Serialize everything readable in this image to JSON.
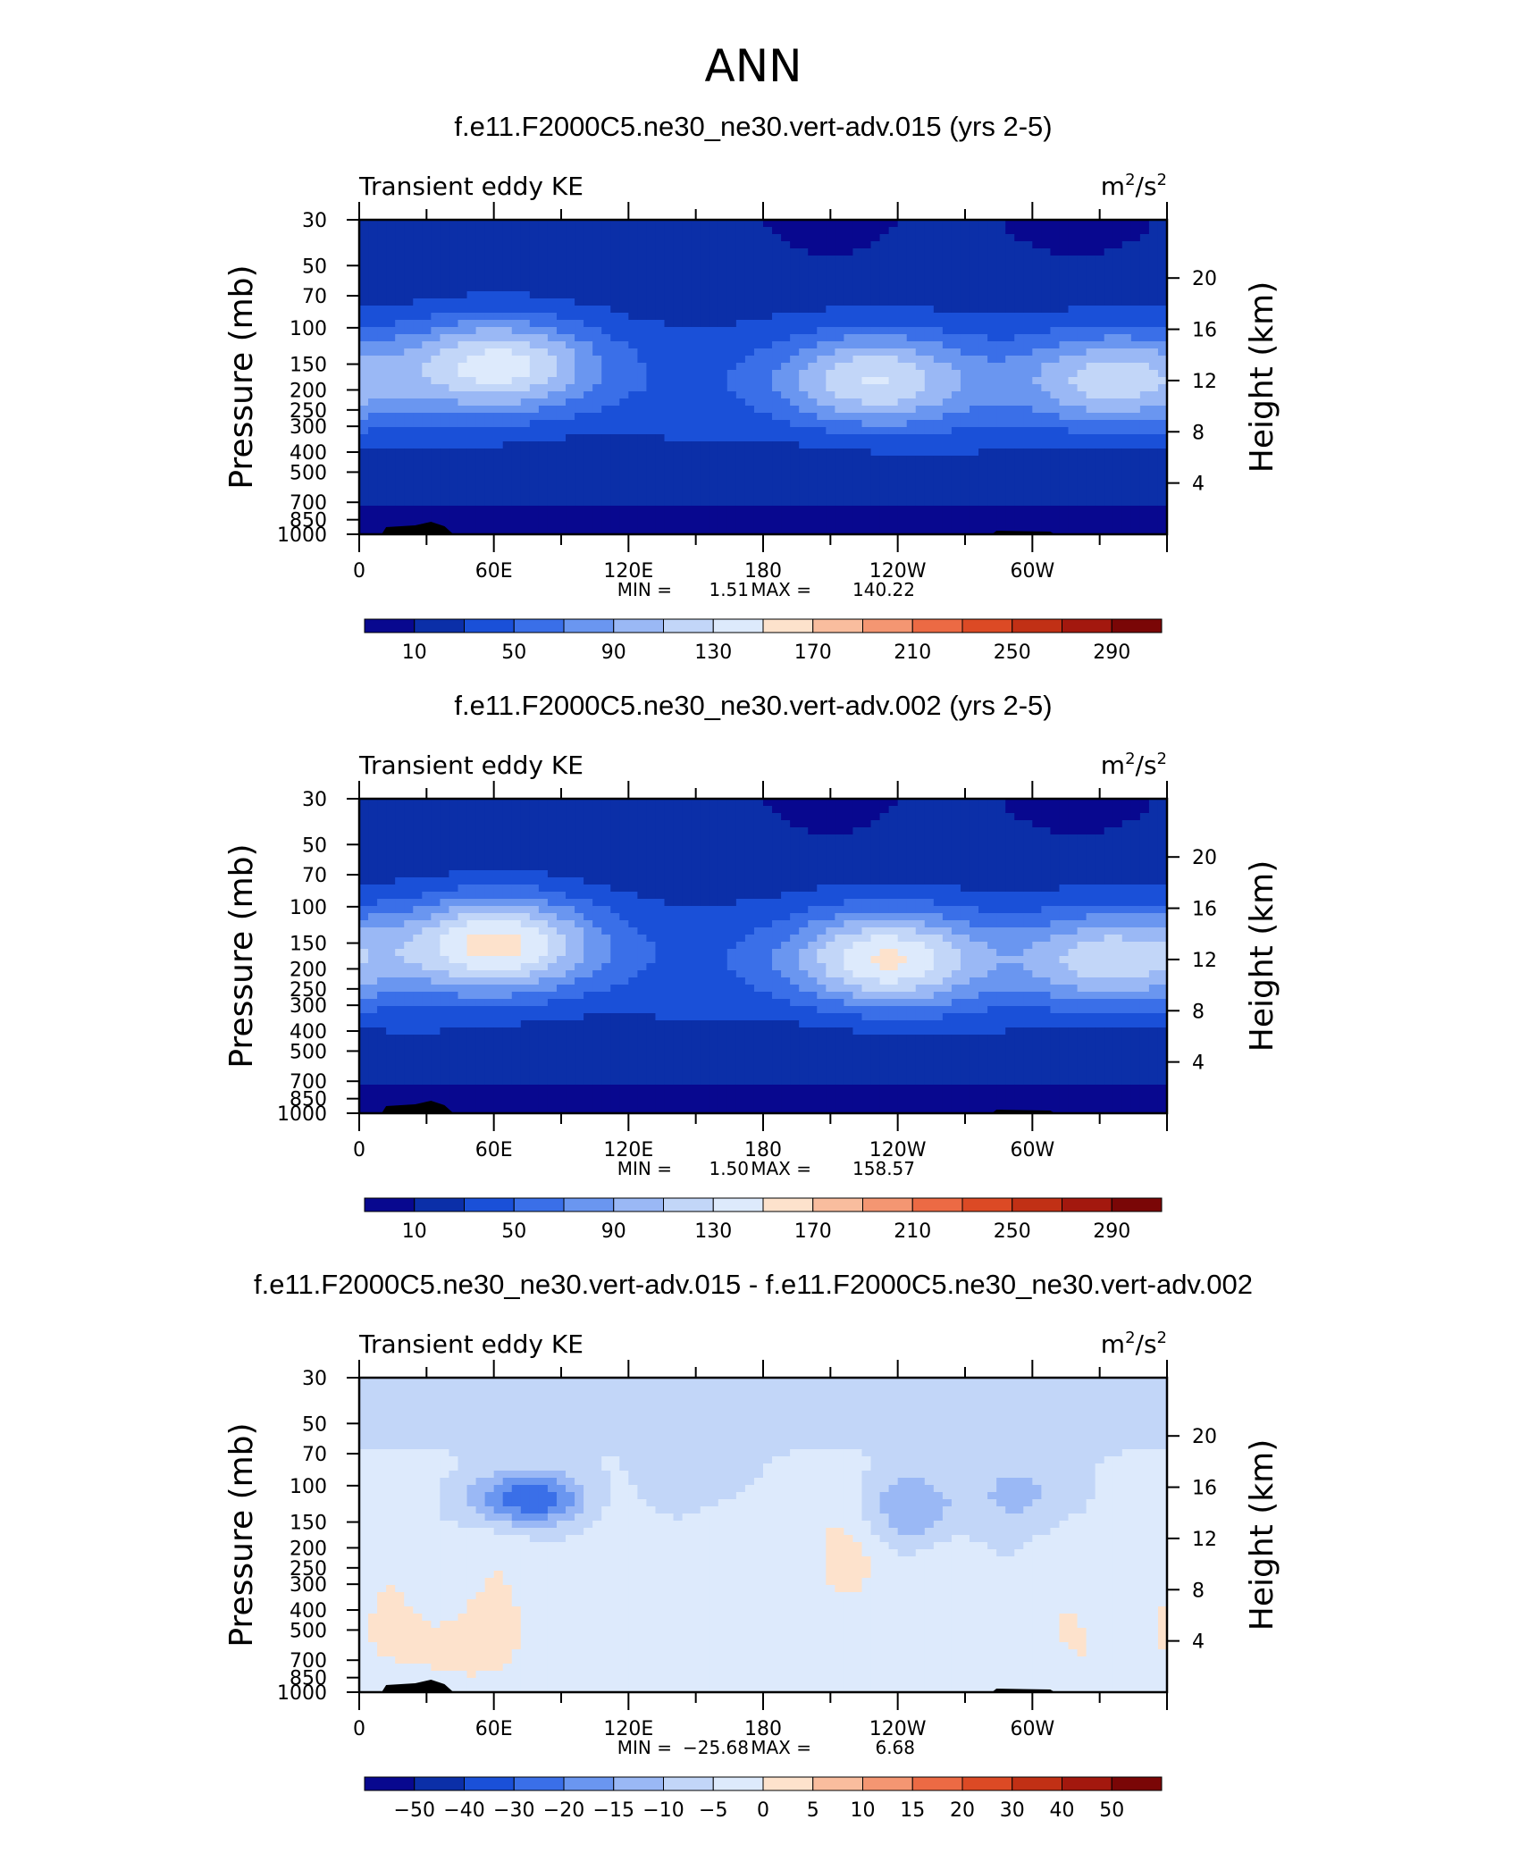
{
  "figure_title": "ANN",
  "colors": {
    "blues": [
      "#08088f",
      "#0b2fa8",
      "#1a50d8",
      "#3a6fe8",
      "#6a96f0",
      "#9ab8f5",
      "#c2d6f8",
      "#ddeafc"
    ],
    "warms": [
      "#fde2cc",
      "#f9bd9e",
      "#f49672",
      "#ec6a44",
      "#dc4a25",
      "#c13015",
      "#a3180e",
      "#7a0606"
    ],
    "land": "#000000"
  },
  "chart_data": [
    {
      "type": "contour",
      "title": "f.e11.F2000C5.ne30_ne30.vert-adv.015 (yrs 2-5)",
      "variable": "Transient eddy KE",
      "units": {
        "base1": "m",
        "sup1": "2",
        "mid": "/s",
        "sup2": "2"
      },
      "ylabel": "Pressure  (mb)",
      "y2label": "Height  (km)",
      "pressure_ticks": [
        "30",
        "50",
        "70",
        "100",
        "150",
        "200",
        "250",
        "300",
        "400",
        "500",
        "700",
        "850",
        "1000"
      ],
      "height_ticks": [
        "20",
        "16",
        "12",
        "8",
        "4"
      ],
      "lon_ticks": [
        "0",
        "60E",
        "120E",
        "180",
        "120W",
        "60W"
      ],
      "stats": {
        "min_label": "MIN =",
        "min_value": "1.51",
        "max_label": "MAX =",
        "max_value": "140.22"
      },
      "colorbar_ticks": [
        "10",
        "50",
        "90",
        "130",
        "170",
        "210",
        "250",
        "290"
      ],
      "levels": [
        10,
        30,
        50,
        70,
        90,
        110,
        130,
        150,
        170,
        190,
        210,
        230,
        250,
        270,
        290
      ],
      "jets": [
        {
          "lon": 62,
          "p": 150,
          "peak": 138
        },
        {
          "lon": 230,
          "p": 180,
          "peak": 128
        },
        {
          "lon": 335,
          "p": 180,
          "peak": 118
        }
      ]
    },
    {
      "type": "contour",
      "title": "f.e11.F2000C5.ne30_ne30.vert-adv.002 (yrs 2-5)",
      "variable": "Transient eddy KE",
      "units": {
        "base1": "m",
        "sup1": "2",
        "mid": "/s",
        "sup2": "2"
      },
      "ylabel": "Pressure  (mb)",
      "y2label": "Height  (km)",
      "pressure_ticks": [
        "30",
        "50",
        "70",
        "100",
        "150",
        "200",
        "250",
        "300",
        "400",
        "500",
        "700",
        "850",
        "1000"
      ],
      "height_ticks": [
        "20",
        "16",
        "12",
        "8",
        "4"
      ],
      "lon_ticks": [
        "0",
        "60E",
        "120E",
        "180",
        "120W",
        "60W"
      ],
      "stats": {
        "min_label": "MIN =",
        "min_value": "1.50",
        "max_label": "MAX =",
        "max_value": "158.57"
      },
      "colorbar_ticks": [
        "10",
        "50",
        "90",
        "130",
        "170",
        "210",
        "250",
        "290"
      ],
      "levels": [
        10,
        30,
        50,
        70,
        90,
        110,
        130,
        150,
        170,
        190,
        210,
        230,
        250,
        270,
        290
      ],
      "jets": [
        {
          "lon": 62,
          "p": 150,
          "peak": 156
        },
        {
          "lon": 235,
          "p": 180,
          "peak": 150
        },
        {
          "lon": 335,
          "p": 180,
          "peak": 122
        }
      ]
    },
    {
      "type": "contour",
      "title": "f.e11.F2000C5.ne30_ne30.vert-adv.015 - f.e11.F2000C5.ne30_ne30.vert-adv.002",
      "variable": "Transient eddy KE",
      "units": {
        "base1": "m",
        "sup1": "2",
        "mid": "/s",
        "sup2": "2"
      },
      "ylabel": "Pressure  (mb)",
      "y2label": "Height  (km)",
      "pressure_ticks": [
        "30",
        "50",
        "70",
        "100",
        "150",
        "200",
        "250",
        "300",
        "400",
        "500",
        "700",
        "850",
        "1000"
      ],
      "height_ticks": [
        "20",
        "16",
        "12",
        "8",
        "4"
      ],
      "lon_ticks": [
        "0",
        "60E",
        "120E",
        "180",
        "120W",
        "60W"
      ],
      "stats": {
        "min_label": "MIN =",
        "min_value": "−25.68",
        "max_label": "MAX =",
        "max_value": "6.68"
      },
      "colorbar_ticks": [
        "−50",
        "−40",
        "−30",
        "−20",
        "−15",
        "−10",
        "−5",
        "0",
        "5",
        "10",
        "15",
        "20",
        "30",
        "40",
        "50"
      ],
      "levels": [
        -50,
        -40,
        -30,
        -20,
        -15,
        -10,
        -5,
        0,
        5,
        10,
        15,
        20,
        30,
        40,
        50
      ]
    }
  ]
}
